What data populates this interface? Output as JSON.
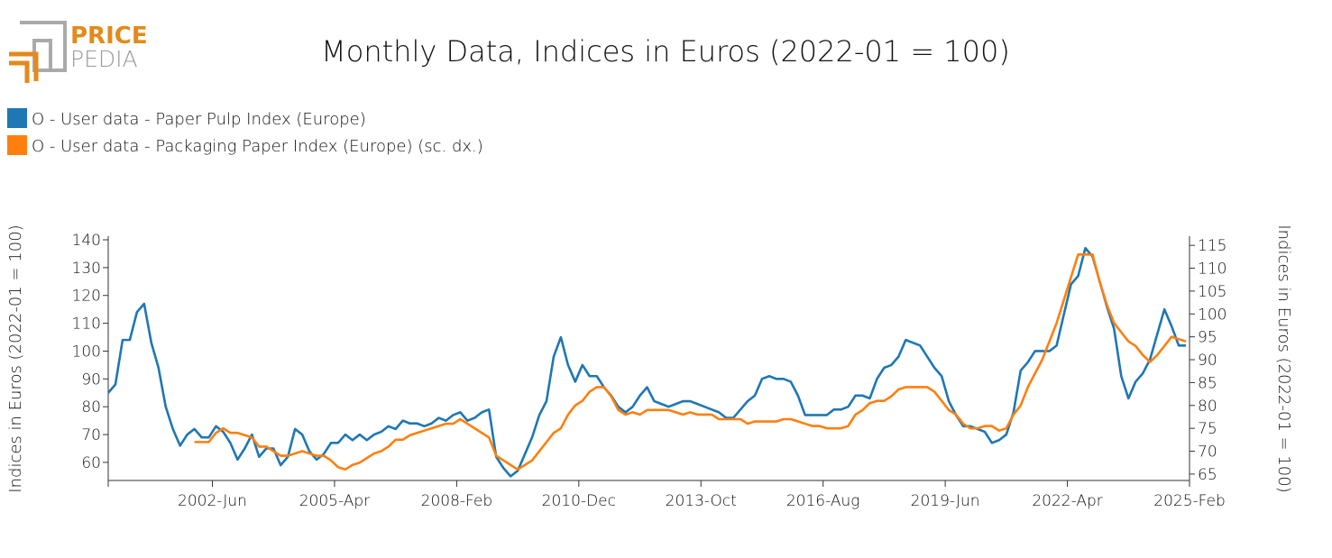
{
  "logo": {
    "top": "PRICE",
    "bottom": "PEDIA"
  },
  "chart_data": {
    "type": "line",
    "title": "Monthly Data, Indices in Euros (2022-01 = 100)",
    "y_label": "Indices in Euros (2022-01 = 100)",
    "y2_label": "Indices in Euros (2022-01 = 100)",
    "legend": "top-left",
    "xlim": [
      "2000-01",
      "2025-02"
    ],
    "xticks": [
      {
        "value": "2002-06",
        "label": "2002-Jun"
      },
      {
        "value": "2005-04",
        "label": "2005-Apr"
      },
      {
        "value": "2008-02",
        "label": "2008-Feb"
      },
      {
        "value": "2010-12",
        "label": "2010-Dec"
      },
      {
        "value": "2013-10",
        "label": "2013-Oct"
      },
      {
        "value": "2016-08",
        "label": "2016-Aug"
      },
      {
        "value": "2019-06",
        "label": "2019-Jun"
      },
      {
        "value": "2022-04",
        "label": "2022-Apr"
      },
      {
        "value": "2025-02",
        "label": "2025-Feb"
      }
    ],
    "ylim": [
      53.5,
      141.3
    ],
    "yticks": [
      60,
      70,
      80,
      90,
      100,
      110,
      120,
      130,
      140
    ],
    "y2lim": [
      63.6,
      117
    ],
    "y2ticks": [
      65,
      70,
      75,
      80,
      85,
      90,
      95,
      100,
      105,
      110,
      115
    ],
    "x": [
      "2000-01",
      "2000-03",
      "2000-05",
      "2000-07",
      "2000-09",
      "2000-11",
      "2001-01",
      "2001-03",
      "2001-05",
      "2001-07",
      "2001-09",
      "2001-11",
      "2002-01",
      "2002-03",
      "2002-05",
      "2002-07",
      "2002-09",
      "2002-11",
      "2003-01",
      "2003-03",
      "2003-05",
      "2003-07",
      "2003-09",
      "2003-11",
      "2004-01",
      "2004-03",
      "2004-05",
      "2004-07",
      "2004-09",
      "2004-11",
      "2005-01",
      "2005-03",
      "2005-05",
      "2005-07",
      "2005-09",
      "2005-11",
      "2006-01",
      "2006-03",
      "2006-05",
      "2006-07",
      "2006-09",
      "2006-11",
      "2007-01",
      "2007-03",
      "2007-05",
      "2007-07",
      "2007-09",
      "2007-11",
      "2008-01",
      "2008-03",
      "2008-05",
      "2008-07",
      "2008-09",
      "2008-11",
      "2009-01",
      "2009-03",
      "2009-05",
      "2009-07",
      "2009-09",
      "2009-11",
      "2010-01",
      "2010-03",
      "2010-05",
      "2010-07",
      "2010-09",
      "2010-11",
      "2011-01",
      "2011-03",
      "2011-05",
      "2011-07",
      "2011-09",
      "2011-11",
      "2012-01",
      "2012-03",
      "2012-05",
      "2012-07",
      "2012-09",
      "2012-11",
      "2013-01",
      "2013-03",
      "2013-05",
      "2013-07",
      "2013-09",
      "2013-11",
      "2014-01",
      "2014-03",
      "2014-05",
      "2014-07",
      "2014-09",
      "2014-11",
      "2015-01",
      "2015-03",
      "2015-05",
      "2015-07",
      "2015-09",
      "2015-11",
      "2016-01",
      "2016-03",
      "2016-05",
      "2016-07",
      "2016-09",
      "2016-11",
      "2017-01",
      "2017-03",
      "2017-05",
      "2017-07",
      "2017-09",
      "2017-11",
      "2018-01",
      "2018-03",
      "2018-05",
      "2018-07",
      "2018-09",
      "2018-11",
      "2019-01",
      "2019-03",
      "2019-05",
      "2019-07",
      "2019-09",
      "2019-11",
      "2020-01",
      "2020-03",
      "2020-05",
      "2020-07",
      "2020-09",
      "2020-11",
      "2021-01",
      "2021-03",
      "2021-05",
      "2021-07",
      "2021-09",
      "2021-11",
      "2022-01",
      "2022-03",
      "2022-05",
      "2022-07",
      "2022-09",
      "2022-11",
      "2023-01",
      "2023-03",
      "2023-05",
      "2023-07",
      "2023-09",
      "2023-11",
      "2024-01",
      "2024-03",
      "2024-05",
      "2024-07",
      "2024-09",
      "2024-11",
      "2025-01"
    ],
    "series": [
      {
        "name": "O - User data - Paper Pulp Index (Europe)",
        "color": "#1f77b4",
        "values": [
          85,
          88,
          104,
          104,
          114,
          117,
          103,
          94,
          80,
          72,
          66,
          70,
          72,
          69,
          69,
          73,
          71,
          67,
          61,
          65,
          70,
          62,
          65,
          65,
          59,
          62,
          72,
          70,
          64,
          61,
          63,
          67,
          67,
          70,
          68,
          70,
          68,
          70,
          71,
          73,
          72,
          75,
          74,
          74,
          73,
          74,
          76,
          75,
          77,
          78,
          75,
          76,
          78,
          79,
          62,
          58,
          55,
          57,
          63,
          69,
          77,
          82,
          98,
          105,
          95,
          89,
          95,
          91,
          91,
          87,
          84,
          80,
          78,
          80,
          84,
          87,
          82,
          81,
          80,
          81,
          82,
          82,
          81,
          80,
          79,
          78,
          76,
          76,
          79,
          82,
          84,
          90,
          91,
          90,
          90,
          89,
          84,
          77,
          77,
          77,
          77,
          79,
          79,
          80,
          84,
          84,
          83,
          90,
          94,
          95,
          98,
          104,
          103,
          102,
          98,
          94,
          91,
          82,
          77,
          73,
          73,
          72,
          71,
          67,
          68,
          70,
          78,
          93,
          96,
          100,
          100,
          100,
          102,
          113,
          124,
          127,
          137,
          134,
          125,
          116,
          108,
          91,
          83,
          89,
          92,
          97,
          106,
          115,
          109,
          102,
          102
        ]
      },
      {
        "name": "O - User data - Packaging Paper Index (Europe) (sc. dx.)",
        "color": "#ff7f0e",
        "axis": "y2",
        "values": [
          null,
          null,
          null,
          null,
          null,
          null,
          null,
          null,
          null,
          null,
          null,
          null,
          72,
          72,
          72,
          74,
          75,
          74,
          74,
          73.5,
          73,
          71,
          71,
          70,
          69,
          69,
          69.5,
          70,
          69.5,
          69,
          69,
          68,
          66.5,
          66,
          67,
          67.5,
          68.5,
          69.5,
          70,
          71,
          72.5,
          72.5,
          73.5,
          74,
          74.5,
          75,
          75.5,
          76,
          76,
          77,
          76,
          75,
          74,
          73,
          69,
          68,
          67,
          66,
          67,
          68,
          70,
          72,
          74,
          75,
          78,
          80,
          81,
          83,
          84,
          84,
          82,
          79,
          78,
          78.5,
          78,
          79,
          79,
          79,
          79,
          78.5,
          78,
          78.5,
          78,
          78,
          78,
          77,
          77,
          77,
          77,
          76,
          76.5,
          76.5,
          76.5,
          76.5,
          77,
          77,
          76.5,
          76,
          75.5,
          75.5,
          75,
          75,
          75,
          75.5,
          78,
          79,
          80.5,
          81,
          81,
          82,
          83.5,
          84,
          84,
          84,
          84,
          83,
          81,
          79,
          78,
          76,
          75,
          75,
          75.5,
          75.5,
          74.5,
          75,
          78,
          80,
          84,
          87,
          90,
          94,
          98,
          103,
          108,
          113,
          113,
          113,
          107,
          102,
          98,
          96,
          94,
          93,
          91,
          89.5,
          91,
          93,
          95,
          94.5,
          94
        ]
      }
    ]
  }
}
